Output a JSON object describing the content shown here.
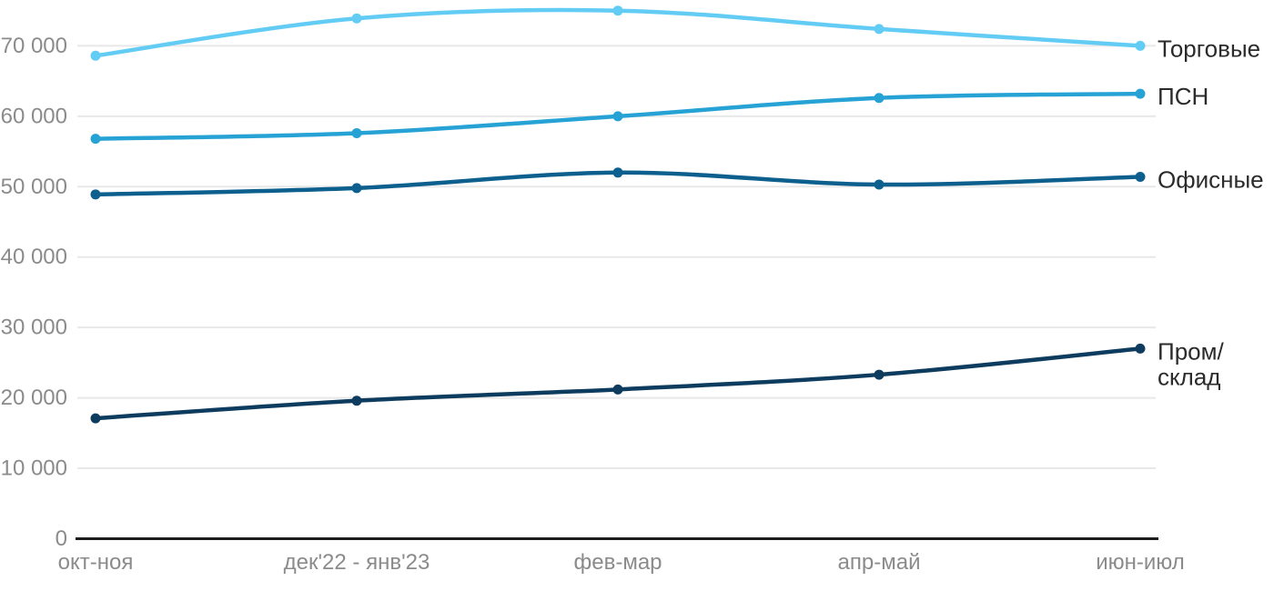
{
  "chart_data": {
    "type": "line",
    "title": "",
    "categories": [
      "окт-ноя",
      "дек'22 - янв'23",
      "фев-мар",
      "апр-май",
      "июн-июл"
    ],
    "series": [
      {
        "name": "Торговые",
        "label_lines": [
          "Торговые"
        ],
        "color": "#63ccf5",
        "values": [
          68600,
          73900,
          75000,
          72400,
          70000
        ]
      },
      {
        "name": "ПСН",
        "label_lines": [
          "ПСН"
        ],
        "color": "#27a2d5",
        "values": [
          56800,
          57600,
          60000,
          62600,
          63200
        ]
      },
      {
        "name": "Офисные",
        "label_lines": [
          "Офисные"
        ],
        "color": "#0d608d",
        "values": [
          48900,
          49800,
          52000,
          50300,
          51400
        ]
      },
      {
        "name": "Пром/склад",
        "label_lines": [
          "Пром/",
          "склад"
        ],
        "color": "#0e3c5f",
        "values": [
          17100,
          19600,
          21200,
          23300,
          27000
        ]
      }
    ],
    "y_axis": {
      "ticks": [
        0,
        10000,
        20000,
        30000,
        40000,
        50000,
        60000,
        70000
      ],
      "tick_labels": [
        "0",
        "10 000",
        "20 000",
        "30 000",
        "40 000",
        "50 000",
        "60 000",
        "70 000"
      ],
      "ylim": [
        0,
        76500
      ]
    },
    "x_axis": {
      "labels_centered_on_points": true
    },
    "grid": true,
    "legend_position": "right",
    "colors": {
      "grid": "#e8e8e8",
      "axis": "#1c1c1c",
      "axis_label": "#8b8b8b",
      "legend_text": "#2b2b2b",
      "background": "#ffffff"
    }
  }
}
